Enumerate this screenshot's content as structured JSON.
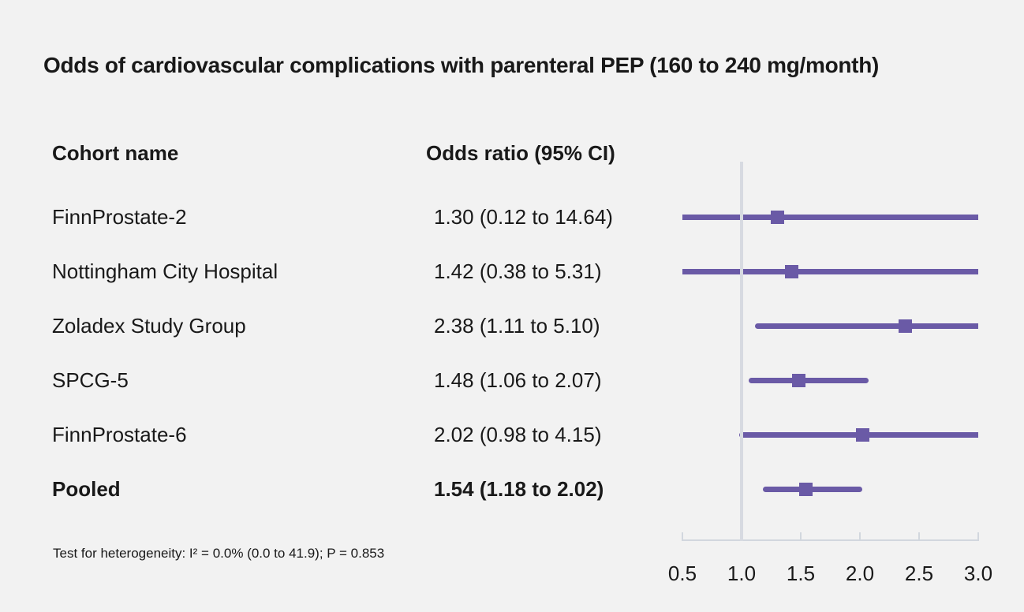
{
  "chart_data": {
    "type": "forest",
    "title": "Odds of cardiovascular complications with parenteral PEP (160 to 240 mg/month)",
    "column_headers": {
      "cohort": "Cohort name",
      "odds_ratio": "Odds ratio (95% CI)"
    },
    "x_scale": "linear",
    "xlim": [
      0.5,
      3.0
    ],
    "x_ticks": [
      0.5,
      1.0,
      1.5,
      2.0,
      2.5,
      3.0
    ],
    "reference_line_x": 1.0,
    "rows": [
      {
        "name": "FinnProstate-2",
        "odds_ratio": 1.3,
        "ci_low": 0.12,
        "ci_high": 14.64,
        "label": "1.30 (0.12 to 14.64)",
        "pooled": false
      },
      {
        "name": "Nottingham City Hospital",
        "odds_ratio": 1.42,
        "ci_low": 0.38,
        "ci_high": 5.31,
        "label": "1.42 (0.38 to 5.31)",
        "pooled": false
      },
      {
        "name": "Zoladex Study Group",
        "odds_ratio": 2.38,
        "ci_low": 1.11,
        "ci_high": 5.1,
        "label": "2.38 (1.11 to 5.10)",
        "pooled": false
      },
      {
        "name": "SPCG-5",
        "odds_ratio": 1.48,
        "ci_low": 1.06,
        "ci_high": 2.07,
        "label": "1.48 (1.06 to 2.07)",
        "pooled": false
      },
      {
        "name": "FinnProstate-6",
        "odds_ratio": 2.02,
        "ci_low": 0.98,
        "ci_high": 4.15,
        "label": "2.02 (0.98 to 4.15)",
        "pooled": false
      },
      {
        "name": "Pooled",
        "odds_ratio": 1.54,
        "ci_low": 1.18,
        "ci_high": 2.02,
        "label": "1.54 (1.18 to 2.02)",
        "pooled": true
      }
    ],
    "footnote": "Test for heterogeneity: I² = 0.0% (0.0 to 41.9); P = 0.853",
    "colors": {
      "marker": "#6a5aa6",
      "axis": "#d2d7de",
      "reference_line": "#d7dae1",
      "background": "#f2f2f2",
      "text": "#191919"
    }
  }
}
